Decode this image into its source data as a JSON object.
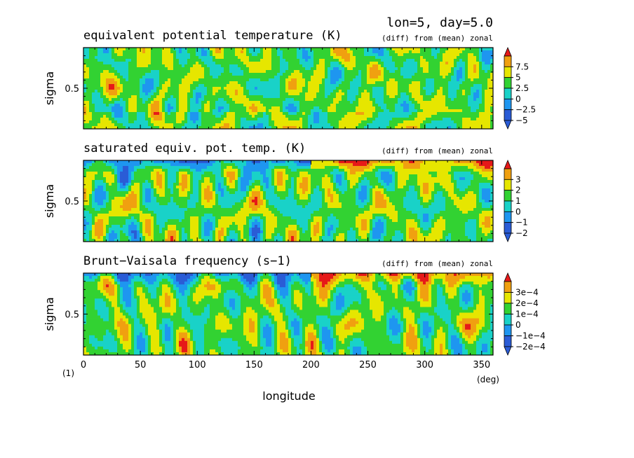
{
  "header": {
    "title": "lon=5, day=5.0"
  },
  "footer": {
    "figure_index": "(1)",
    "xlabel": "longitude",
    "xunit": "(deg)"
  },
  "palette": [
    "#2a5cd6",
    "#1e96f0",
    "#19d2c8",
    "#32d232",
    "#e6e600",
    "#f0a010",
    "#e61919"
  ],
  "chart_data": [
    {
      "type": "heatmap",
      "title": "equivalent potential temperature (K)",
      "subtitle": "(diff) from (mean) zonal",
      "xlabel": "longitude",
      "ylabel": "sigma",
      "xlim": [
        0,
        360
      ],
      "ylim": [
        0,
        1
      ],
      "xticks": [
        0,
        50,
        100,
        150,
        200,
        250,
        300,
        350
      ],
      "yticks": [
        0.5
      ],
      "ytick_labels": [
        "0.5"
      ],
      "levels": [
        -5,
        -2.5,
        0,
        2.5,
        5,
        7.5
      ],
      "colorbar_labels": [
        "7.5",
        "5",
        "2.5",
        "0",
        "−2.5",
        "−5"
      ],
      "seed": 11
    },
    {
      "type": "heatmap",
      "title": "saturated equiv. pot. temp. (K)",
      "subtitle": "(diff) from (mean) zonal",
      "xlabel": "longitude",
      "ylabel": "sigma",
      "xlim": [
        0,
        360
      ],
      "ylim": [
        0,
        1
      ],
      "xticks": [
        0,
        50,
        100,
        150,
        200,
        250,
        300,
        350
      ],
      "yticks": [
        0.5
      ],
      "ytick_labels": [
        "0.5"
      ],
      "levels": [
        -2,
        -1,
        0,
        1,
        2,
        3
      ],
      "colorbar_labels": [
        "3",
        "2",
        "1",
        "0",
        "−1",
        "−2"
      ],
      "seed": 23
    },
    {
      "type": "heatmap",
      "title": "Brunt−Vaisala frequency (s−1)",
      "subtitle": "(diff) from (mean) zonal",
      "xlabel": "longitude",
      "ylabel": "sigma",
      "xlim": [
        0,
        360
      ],
      "ylim": [
        0,
        1
      ],
      "xticks": [
        0,
        50,
        100,
        150,
        200,
        250,
        300,
        350
      ],
      "xtick_labels": [
        "0",
        "50",
        "100",
        "150",
        "200",
        "250",
        "300",
        "350"
      ],
      "yticks": [
        0.5
      ],
      "ytick_labels": [
        "0.5"
      ],
      "levels": [
        -0.0002,
        -0.0001,
        0,
        0.0001,
        0.0002,
        0.0003
      ],
      "colorbar_labels": [
        "3e−4",
        "2e−4",
        "1e−4",
        "0",
        "−1e−4",
        "−2e−4"
      ],
      "seed": 37
    }
  ]
}
